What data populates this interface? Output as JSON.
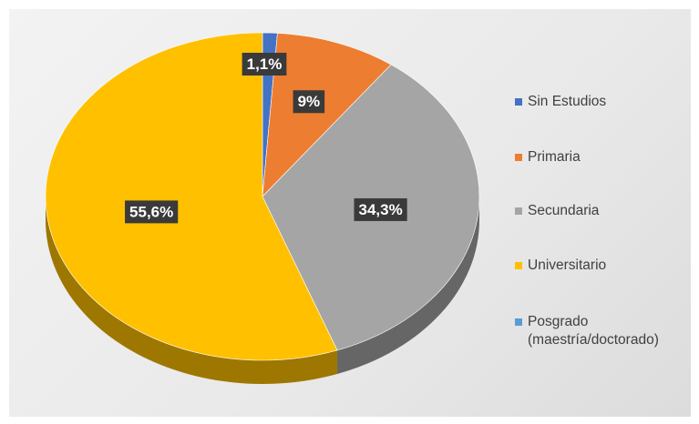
{
  "chart_data": {
    "type": "pie",
    "title": "",
    "slices": [
      {
        "label": "Sin Estudios",
        "value": 1.1,
        "display": "1,1%",
        "color": "#4472C4"
      },
      {
        "label": "Primaria",
        "value": 9.0,
        "display": "9%",
        "color": "#ED7D31"
      },
      {
        "label": "Secundaria",
        "value": 34.3,
        "display": "34,3%",
        "color": "#A5A5A5"
      },
      {
        "label": "Universitario",
        "value": 55.6,
        "display": "55,6%",
        "color": "#FFC000"
      },
      {
        "label": "Posgrado\n(maestría/doctorado)",
        "value": 0,
        "display": "",
        "color": "#5B9BD5"
      }
    ],
    "legend_position": "right",
    "style": "3d-pie"
  }
}
